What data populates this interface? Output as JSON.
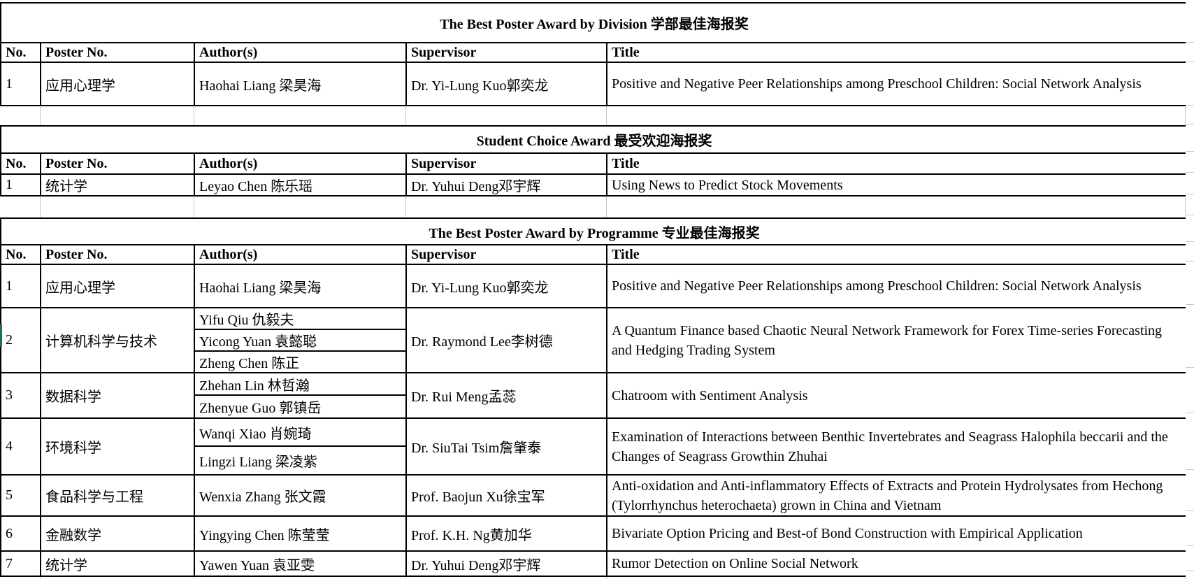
{
  "accent_selection_green": "#217346",
  "grid_line_gray": "#c9c9c9",
  "tables": [
    {
      "title": "The Best Poster Award by Division 学部最佳海报奖",
      "headers": [
        "No.",
        "Poster No.",
        "Author(s)",
        "Supervisor",
        "Title"
      ],
      "rows": [
        {
          "no": "1",
          "poster": "应用心理学",
          "authors": [
            "Haohai Liang 梁昊海"
          ],
          "supervisor": "Dr. Yi-Lung Kuo郭奕龙",
          "title": "Positive and Negative Peer Relationships among Preschool Children: Social Network Analysis"
        }
      ]
    },
    {
      "title": "Student Choice Award 最受欢迎海报奖",
      "headers": [
        "No.",
        "Poster No.",
        "Author(s)",
        "Supervisor",
        "Title"
      ],
      "rows": [
        {
          "no": "1",
          "poster": "统计学",
          "authors": [
            "Leyao Chen 陈乐瑶"
          ],
          "supervisor": "Dr. Yuhui Deng邓宇辉",
          "title": "Using News to Predict Stock Movements"
        }
      ]
    },
    {
      "title": "The Best Poster Award by Programme 专业最佳海报奖",
      "headers": [
        "No.",
        "Poster No.",
        "Author(s)",
        "Supervisor",
        "Title"
      ],
      "rows": [
        {
          "no": "1",
          "poster": "应用心理学",
          "authors": [
            "Haohai Liang 梁昊海"
          ],
          "supervisor": "Dr. Yi-Lung Kuo郭奕龙",
          "title": "Positive and Negative Peer Relationships among Preschool Children: Social Network Analysis"
        },
        {
          "no": "2",
          "poster": "计算机科学与技术",
          "authors": [
            "Yifu Qiu 仇毅夫",
            "Yicong Yuan 袁懿聪",
            "Zheng Chen 陈正"
          ],
          "supervisor": "Dr. Raymond Lee李树德",
          "title": "A Quantum Finance based Chaotic Neural Network Framework for Forex Time-series Forecasting and Hedging Trading System"
        },
        {
          "no": "3",
          "poster": "数据科学",
          "authors": [
            "Zhehan Lin 林哲瀚",
            "Zhenyue Guo 郭镇岳"
          ],
          "supervisor": "Dr. Rui Meng孟蕊",
          "title": "Chatroom with Sentiment Analysis"
        },
        {
          "no": "4",
          "poster": "环境科学",
          "authors": [
            "Wanqi Xiao 肖婉琦",
            "Lingzi Liang 梁凌紫"
          ],
          "supervisor": "Dr. SiuTai Tsim詹肇泰",
          "title": "Examination of Interactions between Benthic Invertebrates and Seagrass Halophila beccarii and the Changes of Seagrass Growthin Zhuhai"
        },
        {
          "no": "5",
          "poster": "食品科学与工程",
          "authors": [
            "Wenxia Zhang 张文霞"
          ],
          "supervisor": "Prof. Baojun Xu徐宝军",
          "title": "Anti-oxidation and Anti-inflammatory Effects of Extracts and Protein Hydrolysates from Hechong (Tylorrhynchus heterochaeta) grown in China and Vietnam"
        },
        {
          "no": "6",
          "poster": "金融数学",
          "authors": [
            "Yingying Chen 陈莹莹"
          ],
          "supervisor": "Prof. K.H. Ng黄加华",
          "title": "Bivariate Option Pricing and Best-of Bond Construction with Empirical Application"
        },
        {
          "no": "7",
          "poster": "统计学",
          "authors": [
            "Yawen Yuan 袁亚雯"
          ],
          "supervisor": "Dr. Yuhui Deng邓宇辉",
          "title": "Rumor Detection on Online Social Network"
        }
      ]
    }
  ]
}
